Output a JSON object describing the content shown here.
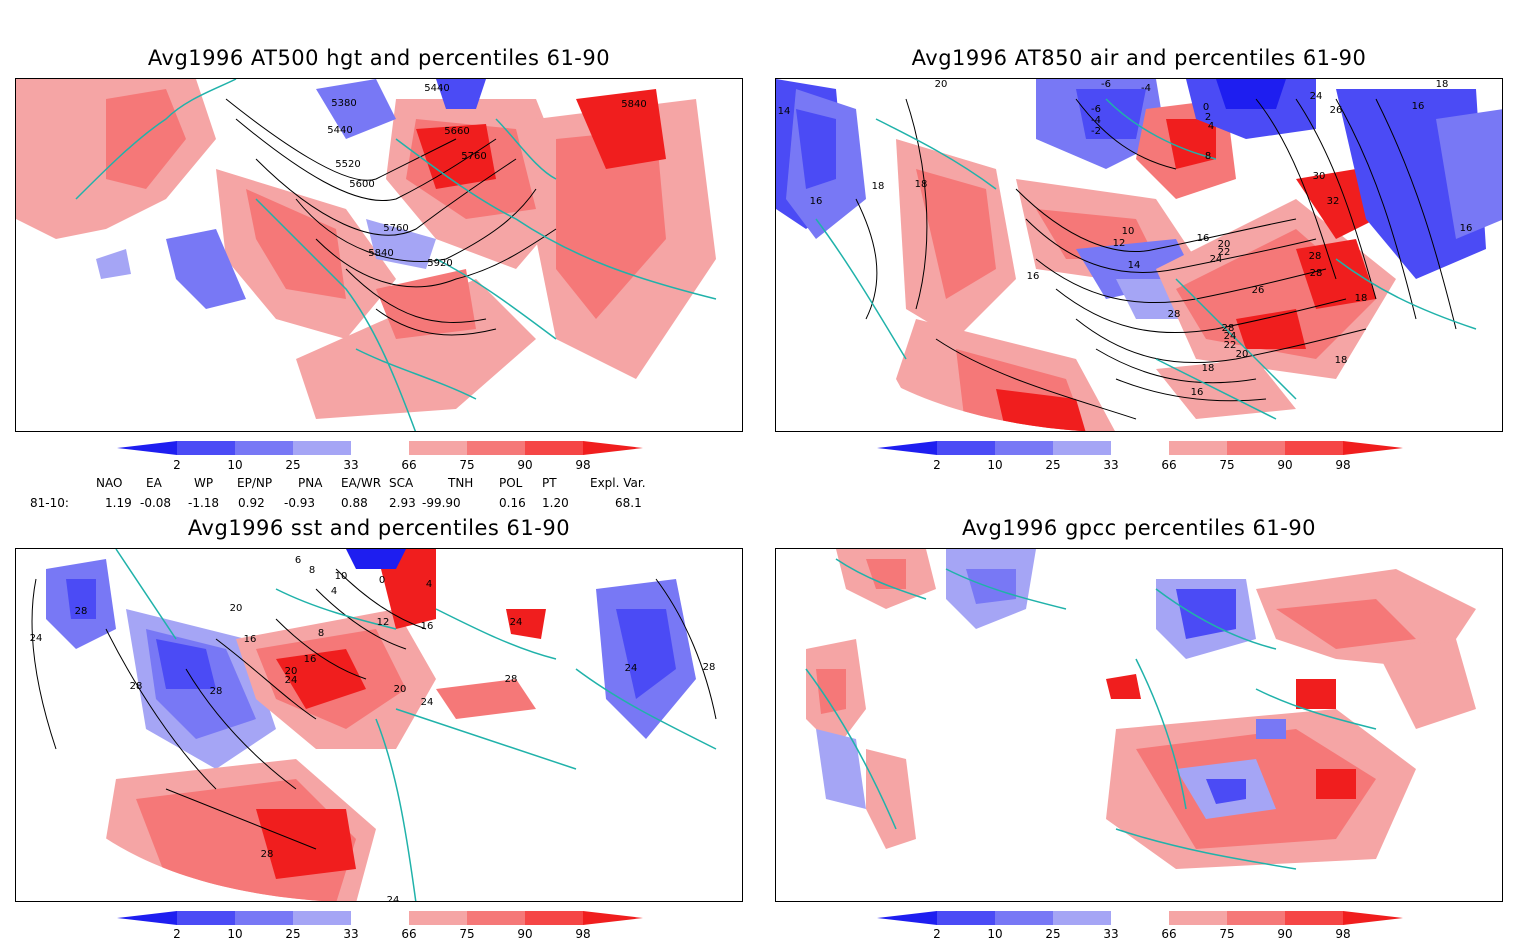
{
  "panels": [
    {
      "title": "Avg1996 AT500 hgt and percentiles 61-90",
      "variable": "hgt",
      "contour_labels": [
        "5440",
        "5380",
        "5440",
        "5520",
        "5600",
        "5660",
        "5760",
        "5760",
        "5840",
        "5840",
        "5920"
      ]
    },
    {
      "title": "Avg1996 AT850 air and percentiles 61-90",
      "variable": "air",
      "contour_labels": [
        "20",
        "-6",
        "-4",
        "-6",
        "-4",
        "-2",
        "0",
        "2",
        "4",
        "8",
        "24",
        "26",
        "16",
        "18",
        "14",
        "18",
        "18",
        "16",
        "10",
        "12",
        "14",
        "16",
        "20",
        "22",
        "24",
        "26",
        "30",
        "32",
        "28",
        "28",
        "28",
        "16",
        "28",
        "24",
        "22",
        "20",
        "18",
        "16",
        "18",
        "16",
        "18"
      ]
    },
    {
      "title": "Avg1996 sst and percentiles 61-90",
      "variable": "sst",
      "contour_labels": [
        "28",
        "24",
        "20",
        "16",
        "28",
        "28",
        "20",
        "24",
        "16",
        "10",
        "8",
        "6",
        "4",
        "0",
        "4",
        "8",
        "12",
        "16",
        "20",
        "24",
        "28",
        "24",
        "24",
        "28",
        "28",
        "24"
      ]
    },
    {
      "title": "Avg1996 gpcc percentiles 61-90",
      "variable": "gpcc",
      "contour_labels": []
    }
  ],
  "colorbar": {
    "labels": [
      "2",
      "10",
      "25",
      "33",
      "66",
      "75",
      "90",
      "98"
    ],
    "colors": [
      "#1e1ef0",
      "#4b4bf5",
      "#7878f5",
      "#a5a5f5",
      "#ffffff",
      "#f5a5a5",
      "#f57878",
      "#f54646",
      "#f01e1e"
    ]
  },
  "indices": {
    "headers": [
      "NAO",
      "EA",
      "WP",
      "EP/NP",
      "PNA",
      "EA/WR",
      "SCA",
      "TNH",
      "POL",
      "PT",
      "Expl. Var."
    ],
    "row_label": "81-10:",
    "values": [
      "1.19",
      "-0.08",
      "-1.18",
      "0.92",
      "-0.93",
      "0.88",
      "2.93",
      "-99.90",
      "0.16",
      "1.20",
      "68.1"
    ]
  },
  "colors": {
    "coast": "#20b2aa",
    "contour": "#000000",
    "blue_dark": "#1e1ef0",
    "blue_mid": "#4b4bf5",
    "blue_light": "#a5a5f5",
    "red_light": "#f5a5a5",
    "red_mid": "#f57878",
    "red_dark": "#f01e1e"
  }
}
